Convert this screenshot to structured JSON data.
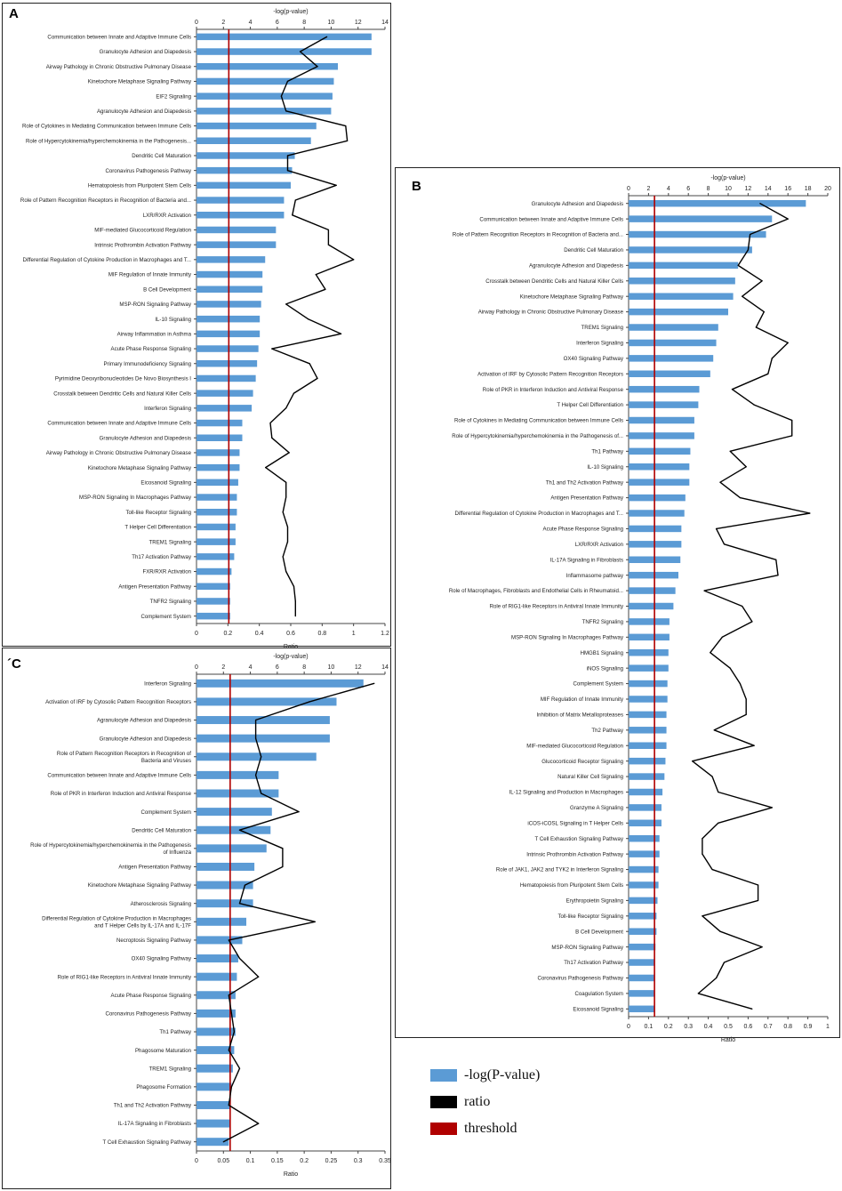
{
  "chart_data": [
    {
      "type": "bar",
      "panel": "A",
      "top_axis_title": "-log(p-value)",
      "xlabel": "Ratio",
      "pval_ticks": [
        0,
        2,
        4,
        6,
        8,
        10,
        12,
        14
      ],
      "ratio_ticks": [
        "0",
        "0.2",
        "0.4",
        "0.6",
        "0.8",
        "1",
        "1.2"
      ],
      "pval_lim": [
        0,
        14
      ],
      "ratio_lim": [
        0,
        1.2
      ],
      "threshold_pval": 2.4,
      "categories": [
        "Communication between Innate and Adaptive Immune Cells",
        "Granulocyte Adhesion and Diapedesis",
        "Airway Pathology in Chronic Obstructive Pulmonary Disease",
        "Kinetochore Metaphase Signaling Pathway",
        "EIF2 Signaling",
        "Agranulocyte Adhesion and Diapedesis",
        "Role of Cytokines in Mediating Communication between Immune Cells",
        "Role of Hypercytokinemia/hyperchemokinemia in the Pathogenesis...",
        "Dendritic Cell Maturation",
        "Coronavirus Pathogenesis Pathway",
        "Hematopoiesis from Pluripotent Stem Cells",
        "Role of Pattern Recognition Receptors in Recognition of Bacteria and...",
        "LXR/RXR Activation",
        "MIF-mediated Glucocorticoid Regulation",
        "Intrinsic Prothrombin Activation Pathway",
        "Differential Regulation of Cytokine Production in Macrophages and T...",
        "MIF Regulation of Innate Immunity",
        "B Cell Development",
        "MSP-RON Signaling Pathway",
        "IL-10 Signaling",
        "Airway Inflammation in Asthma",
        "Acute Phase Response Signaling",
        "Primary Immunodeficiency Signaling",
        "Pyrimidine Deoxyribonucleotides De Novo Biosynthesis I",
        "Crosstalk between Dendritic Cells and Natural Killer Cells",
        "Interferon Signaling",
        "Communication between Innate and Adaptive Immune Cells",
        "Granulocyte Adhesion and Diapedesis",
        "Airway Pathology in Chronic Obstructive Pulmonary Disease",
        "Kinetochore Metaphase Signaling Pathway",
        "Eicosanoid Signaling",
        "MSP-RON Signaling In Macrophages Pathway",
        "Toll-like Receptor Signaling",
        "T Helper Cell Differentiation",
        "TREM1 Signaling",
        "Th17 Activation Pathway",
        "FXR/RXR Activation",
        "Antigen Presentation Pathway",
        "TNFR2 Signaling",
        "Complement System"
      ],
      "pvalues": [
        13.0,
        13.0,
        10.5,
        10.2,
        10.1,
        10.0,
        8.9,
        8.5,
        7.3,
        7.1,
        7.0,
        6.5,
        6.5,
        5.9,
        5.9,
        5.1,
        4.9,
        4.9,
        4.8,
        4.7,
        4.7,
        4.6,
        4.5,
        4.4,
        4.2,
        4.1,
        3.4,
        3.4,
        3.2,
        3.2,
        3.1,
        3.0,
        3.0,
        2.9,
        2.9,
        2.8,
        2.6,
        2.5,
        2.5,
        2.5
      ],
      "ratios": [
        0.83,
        0.66,
        0.77,
        0.58,
        0.54,
        0.57,
        0.95,
        0.96,
        0.58,
        0.58,
        0.89,
        0.63,
        0.61,
        0.84,
        0.84,
        1.0,
        0.76,
        0.82,
        0.57,
        0.71,
        0.92,
        0.48,
        0.72,
        0.77,
        0.62,
        0.57,
        0.47,
        0.48,
        0.59,
        0.44,
        0.57,
        0.57,
        0.55,
        0.58,
        0.58,
        0.55,
        0.57,
        0.62,
        0.63,
        0.63
      ]
    },
    {
      "type": "bar",
      "panel": "B",
      "top_axis_title": "-log(p-value)",
      "xlabel": "Ratio",
      "pval_ticks": [
        0,
        2,
        4,
        6,
        8,
        10,
        12,
        14,
        16,
        18,
        20
      ],
      "ratio_ticks": [
        "0",
        "0.1",
        "0.2",
        "0.3",
        "0.4",
        "0.5",
        "0.6",
        "0.7",
        "0.8",
        "0.9",
        "1"
      ],
      "pval_lim": [
        0,
        20
      ],
      "ratio_lim": [
        0,
        1
      ],
      "threshold_pval": 2.6,
      "categories": [
        "Granulocyte Adhesion and Diapedesis",
        "Communication between Innate and Adaptive Immune Cells",
        "Role of Pattern Recognition Receptors in Recognition of Bacteria and...",
        "Dendritic Cell Maturation",
        "Agranulocyte Adhesion and Diapedesis",
        "Crosstalk between Dendritic Cells and Natural Killer Cells",
        "Kinetochore Metaphase Signaling Pathway",
        "Airway Pathology in Chronic Obstructive Pulmonary Disease",
        "TREM1 Signaling",
        "Interferon Signaling",
        "OX40 Signaling Pathway",
        "Activation of IRF by Cytosolic Pattern Recognition Receptors",
        "Role of PKR in Interferon Induction and Antiviral Response",
        "T Helper Cell Differentiation",
        "Role of Cytokines in Mediating Communication between Immune Cells",
        "Role of Hypercytokinemia/hyperchemokinemia in the Pathogenesis of...",
        "Th1 Pathway",
        "IL-10 Signaling",
        "Th1 and Th2 Activation Pathway",
        "Antigen Presentation Pathway",
        "Differential Regulation of Cytokine Production in Macrophages and T...",
        "Acute Phase Response Signaling",
        "LXR/RXR Activation",
        "IL-17A Signaling in Fibroblasts",
        "Inflammasome pathway",
        "Role of Macrophages, Fibroblasts and Endothelial Cells in Rheumatoid...",
        "Role of RIG1-like Receptors in Antiviral Innate Immunity",
        "TNFR2 Signaling",
        "MSP-RON Signaling In Macrophages Pathway",
        "HMGB1 Signaling",
        "iNOS Signaling",
        "Complement System",
        "MIF Regulation of Innate Immunity",
        "Inhibition of Matrix Metalloproteases",
        "Th2 Pathway",
        "MIF-mediated Glucocorticoid Regulation",
        "Glucocorticoid Receptor Signaling",
        "Natural Killer Cell Signaling",
        "IL-12 Signaling and Production in Macrophages",
        "Granzyme A Signaling",
        "iCOS-iCOSL Signaling in T Helper Cells",
        "T Cell Exhaustion Signaling Pathway",
        "Intrinsic Prothrombin Activation Pathway",
        "Role of JAK1, JAK2 and TYK2 in Interferon Signaling",
        "Hematopoiesis from Pluripotent Stem Cells",
        "Erythropoietin Signaling",
        "Toll-like Receptor Signaling",
        "B Cell Development",
        "MSP-RON Signaling Pathway",
        "Th17 Activation Pathway",
        "Coronavirus Pathogenesis Pathway",
        "Coagulation System",
        "Eicosanoid Signaling"
      ],
      "pvalues": [
        17.8,
        14.4,
        13.8,
        12.4,
        11.0,
        10.7,
        10.5,
        10.0,
        9.0,
        8.8,
        8.5,
        8.2,
        7.1,
        7.0,
        6.6,
        6.6,
        6.2,
        6.1,
        6.1,
        5.7,
        5.6,
        5.3,
        5.3,
        5.2,
        5.0,
        4.7,
        4.5,
        4.1,
        4.1,
        4.0,
        4.0,
        3.9,
        3.9,
        3.8,
        3.8,
        3.8,
        3.7,
        3.6,
        3.4,
        3.3,
        3.3,
        3.1,
        3.1,
        3.0,
        3.0,
        2.9,
        2.8,
        2.8,
        2.7,
        2.6,
        2.6,
        2.6,
        2.6
      ],
      "ratios": [
        0.66,
        0.8,
        0.61,
        0.6,
        0.55,
        0.67,
        0.57,
        0.68,
        0.64,
        0.8,
        0.72,
        0.7,
        0.52,
        0.63,
        0.82,
        0.82,
        0.51,
        0.59,
        0.46,
        0.56,
        0.91,
        0.44,
        0.48,
        0.74,
        0.75,
        0.38,
        0.57,
        0.62,
        0.47,
        0.41,
        0.51,
        0.56,
        0.59,
        0.59,
        0.43,
        0.63,
        0.32,
        0.42,
        0.45,
        0.72,
        0.45,
        0.37,
        0.37,
        0.42,
        0.65,
        0.65,
        0.37,
        0.46,
        0.67,
        0.48,
        0.44,
        0.35,
        0.62
      ]
    },
    {
      "type": "bar",
      "panel": "C",
      "top_axis_title": "-log(p-value)",
      "xlabel": "Ratio",
      "pval_ticks": [
        0,
        2,
        4,
        6,
        8,
        10,
        12,
        14
      ],
      "ratio_ticks": [
        "0",
        "0.05",
        "0.1",
        "0.15",
        "0.2",
        "0.25",
        "0.3",
        "0.35"
      ],
      "pval_lim": [
        0,
        14
      ],
      "ratio_lim": [
        0,
        0.35
      ],
      "threshold_pval": 2.5,
      "categories": [
        "Interferon Signaling",
        "Activation of IRF by Cytosolic Pattern Recognition Receptors",
        "Agranulocyte Adhesion and Diapedesis",
        "Granulocyte Adhesion and Diapedesis",
        "Role of Pattern Recognition Receptors in Recognition of Bacteria and Viruses",
        "Communication between Innate and Adaptive Immune Cells",
        "Role of PKR in Interferon Induction and Antiviral Response",
        "Complement System",
        "Dendritic Cell Maturation",
        "Role of Hypercytokinemia/hyperchemokinemia in the Pathogenesis of Influenza",
        "Antigen Presentation Pathway",
        "Kinetochore Metaphase Signaling Pathway",
        "Atherosclerosis Signaling",
        "Differential Regulation of Cytokine Production in Macrophages and T Helper Cells by IL-17A and IL-17F",
        "Necroptosis Signaling Pathway",
        "OX40 Signaling Pathway",
        "Role of RIG1-like Receptors in Antiviral Innate Immunity",
        "Acute Phase Response Signaling",
        "Coronavirus Pathogenesis Pathway",
        "Th1 Pathway",
        "Phagosome Maturation",
        "TREM1 Signaling",
        "Phagosome Formation",
        "Th1 and Th2 Activation Pathway",
        "IL-17A Signaling in Fibroblasts",
        "T Cell Exhaustion Signaling Pathway"
      ],
      "pvalues": [
        12.4,
        10.4,
        9.9,
        9.9,
        8.9,
        6.1,
        6.1,
        5.6,
        5.5,
        5.2,
        4.3,
        4.2,
        4.2,
        3.7,
        3.4,
        3.1,
        3.0,
        2.9,
        2.9,
        2.9,
        2.8,
        2.7,
        2.6,
        2.5,
        2.5,
        2.4
      ],
      "ratios": [
        0.33,
        0.21,
        0.11,
        0.11,
        0.12,
        0.11,
        0.12,
        0.19,
        0.08,
        0.16,
        0.16,
        0.09,
        0.08,
        0.22,
        0.06,
        0.08,
        0.115,
        0.06,
        0.065,
        0.07,
        0.06,
        0.08,
        0.065,
        0.06,
        0.115,
        0.05
      ]
    }
  ],
  "panel_letters": {
    "a": "A",
    "b": "B",
    "c": "´C"
  },
  "legend": {
    "items": [
      {
        "label": "-log(P-value)",
        "color": "#5B9BD5"
      },
      {
        "label": "ratio",
        "color": "#000000"
      },
      {
        "label": "threshold",
        "color": "#B00000"
      }
    ]
  }
}
